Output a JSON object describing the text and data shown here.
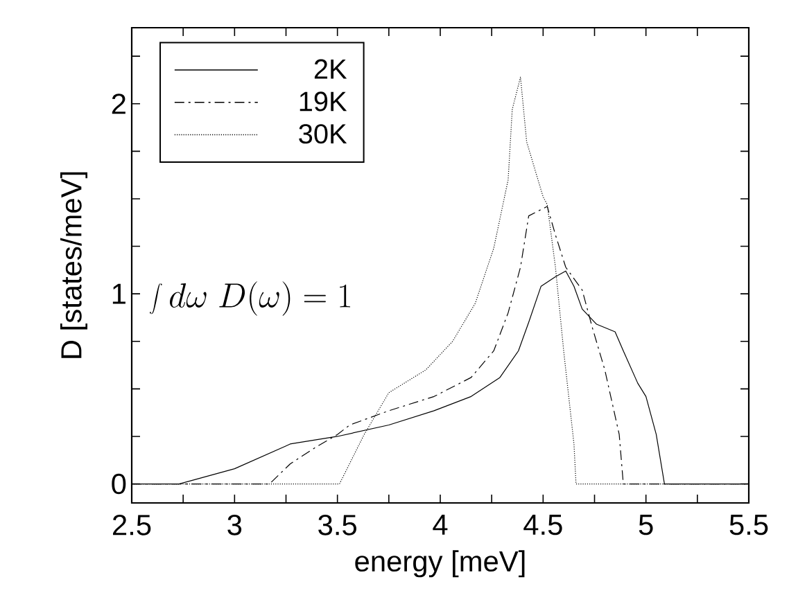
{
  "chart_data": {
    "type": "line",
    "xlabel": "energy [meV]",
    "ylabel": "D [states/meV]",
    "xlim": [
      2.5,
      5.5
    ],
    "ylim": [
      -0.1,
      2.4
    ],
    "xticks": [
      2.5,
      {
        "value": 2.75,
        "label": null
      },
      3,
      {
        "value": 3.25,
        "label": null
      },
      3.5,
      {
        "value": 3.75,
        "label": null
      },
      4,
      {
        "value": 4.25,
        "label": null
      },
      4.5,
      {
        "value": 4.75,
        "label": null
      },
      5,
      {
        "value": 5.25,
        "label": null
      },
      5.5
    ],
    "yticks": [
      0,
      {
        "value": 0.25,
        "label": null
      },
      {
        "value": 0.5,
        "label": null
      },
      {
        "value": 0.75,
        "label": null
      },
      1,
      {
        "value": 1.25,
        "label": null
      },
      {
        "value": 1.5,
        "label": null
      },
      {
        "value": 1.75,
        "label": null
      },
      2,
      {
        "value": 2.25,
        "label": null
      }
    ],
    "grid": false,
    "legend": "top left",
    "marker": "none",
    "annotations": [
      "\\int d\\omega\\; D(\\omega) = 1"
    ],
    "series": [
      {
        "name": "2K",
        "color": "#000000",
        "line_style": "solid",
        "x": [
          2.5,
          2.73,
          3.0,
          3.25,
          3.27,
          3.5,
          3.75,
          3.97,
          4.15,
          4.29,
          4.38,
          4.43,
          4.49,
          4.56,
          4.61,
          4.65,
          4.69,
          4.76,
          4.85,
          4.89,
          4.96,
          5.0,
          5.05,
          5.09,
          5.5
        ],
        "values": [
          0,
          0,
          0.08,
          0.2,
          0.21,
          0.25,
          0.31,
          0.385,
          0.46,
          0.56,
          0.7,
          0.85,
          1.04,
          1.09,
          1.12,
          1.04,
          0.92,
          0.84,
          0.8,
          0.7,
          0.53,
          0.46,
          0.26,
          0,
          0
        ]
      },
      {
        "name": "19K",
        "color": "#000000",
        "line_style": "dashdot",
        "x": [
          2.5,
          3.17,
          3.27,
          3.39,
          3.5,
          3.56,
          3.75,
          3.97,
          4.15,
          4.26,
          4.33,
          4.39,
          4.43,
          4.52,
          4.56,
          4.61,
          4.69,
          4.74,
          4.8,
          4.87,
          4.89,
          5.5
        ],
        "values": [
          0,
          0,
          0.105,
          0.19,
          0.26,
          0.31,
          0.385,
          0.46,
          0.56,
          0.7,
          0.9,
          1.14,
          1.41,
          1.46,
          1.31,
          1.14,
          1.02,
          0.82,
          0.6,
          0.26,
          0,
          0
        ]
      },
      {
        "name": "30K",
        "color": "#000000",
        "line_style": "dotted",
        "x": [
          2.5,
          3.51,
          3.63,
          3.75,
          3.93,
          4.06,
          4.17,
          4.26,
          4.33,
          4.35,
          4.39,
          4.42,
          4.5,
          4.52,
          4.56,
          4.6,
          4.65,
          4.66,
          5.5
        ],
        "values": [
          0,
          0,
          0.26,
          0.48,
          0.6,
          0.75,
          0.95,
          1.24,
          1.6,
          1.97,
          2.14,
          1.8,
          1.51,
          1.47,
          1.14,
          0.7,
          0.21,
          0,
          0
        ]
      }
    ]
  }
}
